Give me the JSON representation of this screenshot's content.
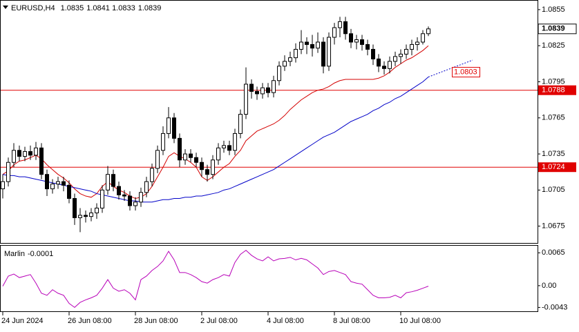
{
  "chart_data": [
    {
      "type": "candlestick",
      "symbol": "EURUSD,H4",
      "categories": [
        "24 Jun 2024",
        null,
        null,
        null,
        null,
        null,
        null,
        null,
        null,
        null,
        null,
        null,
        "26 Jun 08:00",
        null,
        null,
        null,
        null,
        null,
        null,
        null,
        null,
        null,
        null,
        null,
        "28 Jun 08:00",
        null,
        null,
        null,
        null,
        null,
        null,
        null,
        null,
        null,
        null,
        null,
        "2 Jul 08:00",
        null,
        null,
        null,
        null,
        null,
        null,
        null,
        null,
        null,
        null,
        null,
        "4 Jul 08:00",
        null,
        null,
        null,
        null,
        null,
        null,
        null,
        null,
        null,
        null,
        null,
        "8 Jul 08:00",
        null,
        null,
        null,
        null,
        null,
        null,
        null,
        null,
        null,
        null,
        null,
        "10 Jul 08:00",
        null,
        null,
        null,
        null,
        null
      ],
      "open": [
        1.0706,
        1.0712,
        1.0728,
        1.0738,
        1.0733,
        1.0737,
        1.0734,
        1.074,
        1.0718,
        1.0706,
        1.071,
        1.0712,
        1.0709,
        1.0698,
        1.0682,
        1.0684,
        1.0683,
        1.0686,
        1.069,
        1.0705,
        1.0718,
        1.0708,
        1.0701,
        1.07,
        1.0692,
        1.0695,
        1.0703,
        1.0712,
        1.0723,
        1.0738,
        1.0752,
        1.0765,
        1.0748,
        1.073,
        1.0735,
        1.0732,
        1.0728,
        1.0722,
        1.0718,
        1.073,
        1.074,
        1.0742,
        1.0738,
        1.0752,
        1.0768,
        1.0793,
        1.0787,
        1.0785,
        1.079,
        1.0786,
        1.0796,
        1.0808,
        1.0812,
        1.0815,
        1.0822,
        1.0828,
        1.0826,
        1.0823,
        1.0828,
        1.0808,
        1.0832,
        1.084,
        1.0845,
        1.0835,
        1.0828,
        1.083,
        1.0826,
        1.0822,
        1.0814,
        1.0808,
        1.0806,
        1.0812,
        1.0816,
        1.0818,
        1.0822,
        1.0826,
        1.0828,
        1.0835
      ],
      "high": [
        1.0718,
        1.0732,
        1.0744,
        1.0742,
        1.0741,
        1.0742,
        1.0745,
        1.0744,
        1.0722,
        1.0714,
        1.0716,
        1.0716,
        1.0713,
        1.0702,
        1.069,
        1.0688,
        1.069,
        1.0694,
        1.0709,
        1.0725,
        1.0722,
        1.0712,
        1.0705,
        1.0704,
        1.0699,
        1.0707,
        1.0716,
        1.0727,
        1.0742,
        1.0758,
        1.0774,
        1.0769,
        1.0752,
        1.0739,
        1.0739,
        1.0736,
        1.0732,
        1.0726,
        1.0734,
        1.0744,
        1.0746,
        1.0746,
        1.0756,
        1.0772,
        1.0807,
        1.0797,
        1.0791,
        1.0794,
        1.0794,
        1.08,
        1.0812,
        1.0817,
        1.082,
        1.0827,
        1.0838,
        1.0832,
        1.0834,
        1.0836,
        1.0832,
        1.0836,
        1.0844,
        1.0849,
        1.0849,
        1.0839,
        1.0834,
        1.0834,
        1.083,
        1.0826,
        1.0818,
        1.0812,
        1.0816,
        1.082,
        1.0822,
        1.0826,
        1.083,
        1.0832,
        1.0838,
        1.0841
      ],
      "low": [
        1.0698,
        1.0708,
        1.0724,
        1.0729,
        1.0729,
        1.073,
        1.073,
        1.0714,
        1.07,
        1.0702,
        1.0706,
        1.0704,
        1.0694,
        1.0676,
        1.067,
        1.0678,
        1.0679,
        1.0681,
        1.0686,
        1.0701,
        1.0704,
        1.0697,
        1.0696,
        1.0688,
        1.0688,
        1.0691,
        1.0699,
        1.0708,
        1.0719,
        1.0734,
        1.0748,
        1.0744,
        1.0724,
        1.0726,
        1.0728,
        1.0724,
        1.0716,
        1.0712,
        1.0714,
        1.0726,
        1.0736,
        1.0734,
        1.0734,
        1.0748,
        1.0764,
        1.0781,
        1.078,
        1.0781,
        1.0782,
        1.0782,
        1.0792,
        1.0804,
        1.0808,
        1.0811,
        1.0818,
        1.0818,
        1.0816,
        1.0819,
        1.0802,
        1.0804,
        1.0826,
        1.0832,
        1.083,
        1.0823,
        1.0822,
        1.0821,
        1.0817,
        1.0809,
        1.0803,
        1.0801,
        1.0802,
        1.0808,
        1.081,
        1.0814,
        1.0817,
        1.0821,
        1.0826,
        1.0833
      ],
      "close": [
        1.0712,
        1.0728,
        1.0738,
        1.0733,
        1.0737,
        1.0734,
        1.074,
        1.0718,
        1.0706,
        1.071,
        1.0712,
        1.0709,
        1.0698,
        1.0682,
        1.0684,
        1.0683,
        1.0686,
        1.069,
        1.0705,
        1.0718,
        1.0708,
        1.0701,
        1.07,
        1.0692,
        1.0695,
        1.0703,
        1.0712,
        1.0723,
        1.0738,
        1.0752,
        1.0765,
        1.0748,
        1.073,
        1.0735,
        1.0732,
        1.0728,
        1.0722,
        1.0718,
        1.073,
        1.074,
        1.0742,
        1.0738,
        1.0752,
        1.0768,
        1.0793,
        1.0787,
        1.0785,
        1.079,
        1.0786,
        1.0796,
        1.0808,
        1.0812,
        1.0815,
        1.0822,
        1.0828,
        1.0826,
        1.0823,
        1.0828,
        1.0808,
        1.0832,
        1.084,
        1.0845,
        1.0835,
        1.0828,
        1.083,
        1.0826,
        1.0822,
        1.0814,
        1.0808,
        1.0806,
        1.0812,
        1.0816,
        1.0818,
        1.0822,
        1.0826,
        1.0828,
        1.0835,
        1.0839
      ],
      "up_color": "#ffffff",
      "down_color": "#000000",
      "edge_color": "#000000",
      "lines": [
        {
          "color": "#d40000",
          "values": [
            1.0718,
            1.0721,
            1.0726,
            1.0729,
            1.073,
            1.0732,
            1.0734,
            1.0731,
            1.0726,
            1.0722,
            1.0718,
            1.0715,
            1.0711,
            1.0706,
            1.0702,
            1.07,
            1.0699,
            1.0702,
            1.0708,
            1.0712,
            1.0708,
            1.0705,
            1.0703,
            1.07,
            1.0698,
            1.0699,
            1.0702,
            1.0708,
            1.0716,
            1.0724,
            1.0733,
            1.0736,
            1.0733,
            1.0731,
            1.0728,
            1.0724,
            1.0716,
            1.0713,
            1.0716,
            1.072,
            1.0724,
            1.0727,
            1.0733,
            1.0738,
            1.0746,
            1.075,
            1.0754,
            1.0756,
            1.0758,
            1.076,
            1.0763,
            1.0767,
            1.0772,
            1.0776,
            1.078,
            1.0783,
            1.0786,
            1.0788,
            1.0789,
            1.0791,
            1.0794,
            1.0796,
            1.0797,
            1.0797,
            1.0797,
            1.0797,
            1.0797,
            1.0797,
            1.0798,
            1.08,
            1.0803,
            1.0807,
            1.081,
            1.0813,
            1.0815,
            1.0818,
            1.0821,
            1.0825
          ]
        },
        {
          "color": "#0000c8",
          "values": [
            1.0718,
            1.0717,
            1.0717,
            1.0716,
            1.0716,
            1.0715,
            1.0714,
            1.0713,
            1.0712,
            1.0711,
            1.071,
            1.0709,
            1.0708,
            1.0707,
            1.0706,
            1.0705,
            1.0704,
            1.0702,
            1.0701,
            1.07,
            1.0699,
            1.0698,
            1.0697,
            1.0696,
            1.0696,
            1.0695,
            1.0695,
            1.0695,
            1.0696,
            1.0697,
            1.0697,
            1.0698,
            1.0698,
            1.0699,
            1.0699,
            1.07,
            1.07,
            1.0701,
            1.0702,
            1.0703,
            1.0705,
            1.0706,
            1.0708,
            1.071,
            1.0712,
            1.0714,
            1.0716,
            1.0718,
            1.072,
            1.0722,
            1.0725,
            1.0728,
            1.0731,
            1.0734,
            1.0737,
            1.074,
            1.0743,
            1.0746,
            1.0749,
            1.0751,
            1.0753,
            1.0756,
            1.0759,
            1.0762,
            1.0764,
            1.0766,
            1.0768,
            1.0771,
            1.0773,
            1.0776,
            1.0778,
            1.0781,
            1.0783,
            1.0786,
            1.0789,
            1.0792,
            1.0795,
            1.0799
          ]
        }
      ],
      "forecast": {
        "color": "#0000c8",
        "x": [
          77,
          85
        ],
        "values": [
          1.0799,
          1.0813
        ]
      },
      "forecast_label": 1.0803,
      "hlines": [
        {
          "value": 1.0788,
          "color": "#e00000"
        },
        {
          "value": 1.0724,
          "color": "#e00000"
        }
      ],
      "ylim": [
        1.0661,
        1.0863
      ],
      "yticks": [
        1.0855,
        1.0825,
        1.0795,
        1.0765,
        1.0735,
        1.0705,
        1.0675
      ]
    },
    {
      "type": "line",
      "name": "Marlin",
      "color": "#b800b8",
      "values": [
        -0.0001,
        0.0019,
        0.0023,
        0.0016,
        0.0019,
        0.0022,
        0.0005,
        -0.0015,
        -0.0019,
        -0.0008,
        -0.0015,
        -0.0019,
        -0.0035,
        -0.0043,
        -0.0033,
        -0.0028,
        -0.0024,
        -0.0019,
        -0.0005,
        0.0012,
        -0.0005,
        -0.0011,
        -0.0008,
        -0.0015,
        -0.0028,
        0.0012,
        0.0019,
        0.003,
        0.0038,
        0.0049,
        0.0068,
        0.0051,
        0.0026,
        0.0026,
        0.0022,
        0.0016,
        0.0008,
        0.0005,
        0.0012,
        0.0016,
        0.0022,
        0.0019,
        0.0046,
        0.0062,
        0.007,
        0.006,
        0.0053,
        0.0049,
        0.0057,
        0.0049,
        0.0053,
        0.0054,
        0.0056,
        0.0051,
        0.0054,
        0.0051,
        0.0043,
        0.0035,
        0.0022,
        0.0028,
        0.003,
        0.0026,
        0.0022,
        0.0008,
        0.0005,
        0.0003,
        -0.0008,
        -0.0019,
        -0.0024,
        -0.0024,
        -0.0023,
        -0.0019,
        -0.0024,
        -0.0014,
        -0.0012,
        -0.0009,
        -0.0005,
        -0.0001
      ],
      "ylim": [
        -0.0052,
        0.0079
      ],
      "yticks": [
        0.0065,
        {
          "value": 0,
          "label": "0.00"
        },
        -0.0043
      ]
    }
  ]
}
